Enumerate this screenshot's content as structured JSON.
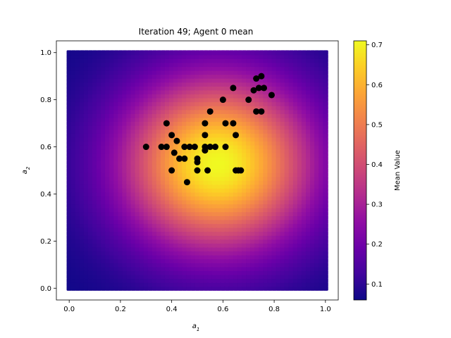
{
  "chart_data": {
    "type": "scatter",
    "title": "Iteration 49; Agent 0 mean",
    "xlabel": "a",
    "xlabel_sub": "1",
    "ylabel": "a",
    "ylabel_sub": "2",
    "xlim": [
      -0.05,
      1.05
    ],
    "ylim": [
      -0.05,
      1.05
    ],
    "x_ticks": [
      "0.0",
      "0.2",
      "0.4",
      "0.6",
      "0.8",
      "1.0"
    ],
    "y_ticks": [
      "0.0",
      "0.2",
      "0.4",
      "0.6",
      "0.8",
      "1.0"
    ],
    "colormap": "plasma",
    "background_surface": {
      "description_of_field": "Gaussian-like mean surface peaking near (0.58, 0.53)",
      "peak": [
        0.58,
        0.53
      ],
      "vmin": 0.06,
      "vmax": 0.71
    },
    "colorbar": {
      "label": "Mean Value",
      "range": [
        0.06,
        0.71
      ],
      "ticks": [
        "0.1",
        "0.2",
        "0.3",
        "0.4",
        "0.5",
        "0.6",
        "0.7"
      ],
      "tick_values": [
        0.1,
        0.2,
        0.3,
        0.4,
        0.5,
        0.6,
        0.7
      ]
    },
    "points_color": "#000000",
    "points": [
      [
        0.3,
        0.6
      ],
      [
        0.36,
        0.6
      ],
      [
        0.38,
        0.6
      ],
      [
        0.38,
        0.7
      ],
      [
        0.4,
        0.65
      ],
      [
        0.4,
        0.5
      ],
      [
        0.41,
        0.575
      ],
      [
        0.42,
        0.625
      ],
      [
        0.43,
        0.55
      ],
      [
        0.45,
        0.55
      ],
      [
        0.45,
        0.6
      ],
      [
        0.46,
        0.45
      ],
      [
        0.47,
        0.6
      ],
      [
        0.49,
        0.6
      ],
      [
        0.5,
        0.55
      ],
      [
        0.5,
        0.535
      ],
      [
        0.5,
        0.5
      ],
      [
        0.53,
        0.7
      ],
      [
        0.53,
        0.65
      ],
      [
        0.53,
        0.6
      ],
      [
        0.53,
        0.585
      ],
      [
        0.54,
        0.5
      ],
      [
        0.55,
        0.6
      ],
      [
        0.55,
        0.75
      ],
      [
        0.57,
        0.6
      ],
      [
        0.6,
        0.8
      ],
      [
        0.61,
        0.7
      ],
      [
        0.61,
        0.6
      ],
      [
        0.64,
        0.85
      ],
      [
        0.64,
        0.7
      ],
      [
        0.65,
        0.65
      ],
      [
        0.65,
        0.5
      ],
      [
        0.66,
        0.5
      ],
      [
        0.67,
        0.5
      ],
      [
        0.7,
        0.8
      ],
      [
        0.72,
        0.84
      ],
      [
        0.73,
        0.89
      ],
      [
        0.73,
        0.75
      ],
      [
        0.74,
        0.85
      ],
      [
        0.75,
        0.9
      ],
      [
        0.75,
        0.75
      ],
      [
        0.76,
        0.85
      ],
      [
        0.79,
        0.82
      ]
    ]
  }
}
